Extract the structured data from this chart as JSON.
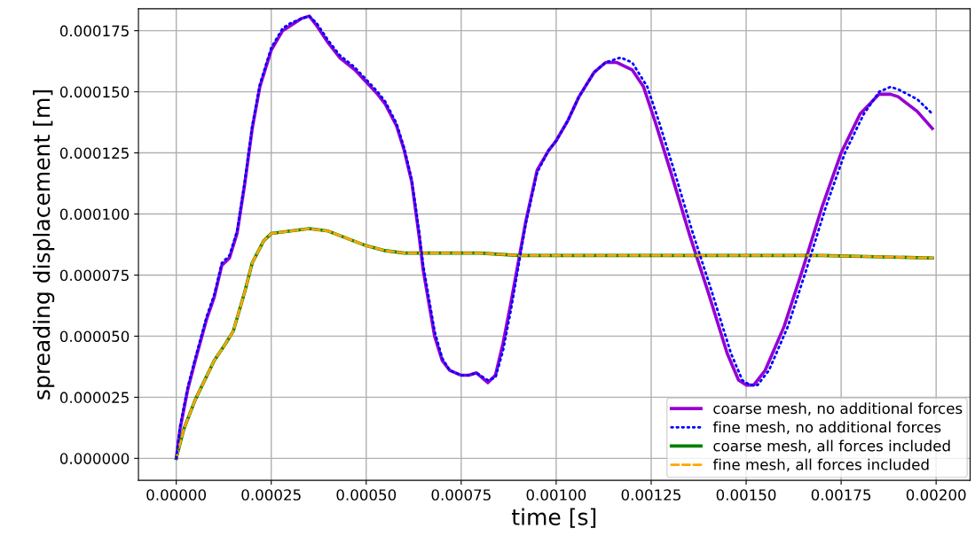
{
  "chart_data": {
    "type": "line",
    "xlabel": "time [s]",
    "ylabel": "spreading displacement [m]",
    "xlim": [
      -9.95e-05,
      0.0020895
    ],
    "ylim": [
      -9e-06,
      0.000184
    ],
    "xticks": [
      {
        "value": 0,
        "label": "0.00000"
      },
      {
        "value": 0.00025,
        "label": "0.00025"
      },
      {
        "value": 0.0005,
        "label": "0.00050"
      },
      {
        "value": 0.00075,
        "label": "0.00075"
      },
      {
        "value": 0.001,
        "label": "0.00100"
      },
      {
        "value": 0.00125,
        "label": "0.00125"
      },
      {
        "value": 0.0015,
        "label": "0.00150"
      },
      {
        "value": 0.00175,
        "label": "0.00175"
      },
      {
        "value": 0.002,
        "label": "0.00200"
      }
    ],
    "yticks": [
      {
        "value": 0,
        "label": "0.000000"
      },
      {
        "value": 2.5e-05,
        "label": "0.000025"
      },
      {
        "value": 5e-05,
        "label": "0.000050"
      },
      {
        "value": 7.5e-05,
        "label": "0.000075"
      },
      {
        "value": 0.0001,
        "label": "0.000100"
      },
      {
        "value": 0.000125,
        "label": "0.000125"
      },
      {
        "value": 0.00015,
        "label": "0.000150"
      },
      {
        "value": 0.000175,
        "label": "0.000175"
      }
    ],
    "grid": true,
    "legend": "bottom right",
    "series": [
      {
        "name": "coarse mesh, no additional forces",
        "color": "#9400d3",
        "line_style": "solid",
        "x": [
          0,
          1e-05,
          3e-05,
          5e-05,
          8e-05,
          0.0001,
          0.00012,
          0.00014,
          0.00016,
          0.00018,
          0.0002,
          0.00022,
          0.00025,
          0.00028,
          0.0003,
          0.00033,
          0.00035,
          0.00037,
          0.0004,
          0.00043,
          0.00047,
          0.0005,
          0.00053,
          0.00055,
          0.00058,
          0.0006,
          0.00062,
          0.00064,
          0.00065,
          0.00066,
          0.00068,
          0.0007,
          0.00072,
          0.00075,
          0.00077,
          0.00079,
          0.00082,
          0.00084,
          0.00086,
          0.00088,
          0.0009,
          0.00092,
          0.00095,
          0.00098,
          0.001,
          0.00103,
          0.00106,
          0.0011,
          0.00113,
          0.00116,
          0.0012,
          0.00123,
          0.00126,
          0.0013,
          0.00135,
          0.0014,
          0.00145,
          0.00148,
          0.0015,
          0.00152,
          0.00155,
          0.0016,
          0.00165,
          0.0017,
          0.00175,
          0.0018,
          0.00185,
          0.00188,
          0.0019,
          0.00195,
          0.00199
        ],
        "values": [
          0,
          1.2e-05,
          2.8e-05,
          4e-05,
          5.7e-05,
          6.6e-05,
          7.9e-05,
          8.2e-05,
          9.2e-05,
          0.000112,
          0.000135,
          0.000152,
          0.000167,
          0.000175,
          0.000177,
          0.00018,
          0.000181,
          0.000177,
          0.00017,
          0.000164,
          0.000159,
          0.000154,
          0.000149,
          0.000145,
          0.000136,
          0.000126,
          0.000113,
          9e-05,
          7.7e-05,
          6.8e-05,
          5e-05,
          4e-05,
          3.6e-05,
          3.4e-05,
          3.4e-05,
          3.5e-05,
          3.1e-05,
          3.4e-05,
          4.7e-05,
          6.3e-05,
          8e-05,
          9.7e-05,
          0.000118,
          0.000126,
          0.00013,
          0.000138,
          0.000148,
          0.000158,
          0.000162,
          0.000162,
          0.000159,
          0.000152,
          0.000138,
          0.000118,
          9.2e-05,
          6.8e-05,
          4.3e-05,
          3.2e-05,
          3e-05,
          3e-05,
          3.6e-05,
          5.4e-05,
          7.8e-05,
          0.000103,
          0.000125,
          0.000141,
          0.000149,
          0.000149,
          0.000148,
          0.000142,
          0.000135
        ]
      },
      {
        "name": "fine mesh, no additional forces",
        "color": "#0000ff",
        "line_style": "dotted",
        "x": [
          0,
          1e-05,
          3e-05,
          5e-05,
          8e-05,
          0.0001,
          0.00012,
          0.00014,
          0.00016,
          0.00018,
          0.0002,
          0.00022,
          0.00025,
          0.00028,
          0.0003,
          0.00033,
          0.00035,
          0.00037,
          0.0004,
          0.00043,
          0.00047,
          0.0005,
          0.00053,
          0.00055,
          0.00058,
          0.0006,
          0.00062,
          0.00064,
          0.00065,
          0.00066,
          0.00068,
          0.0007,
          0.00072,
          0.00075,
          0.00077,
          0.00079,
          0.00082,
          0.00084,
          0.00086,
          0.00088,
          0.0009,
          0.00092,
          0.00095,
          0.00098,
          0.001,
          0.00103,
          0.00106,
          0.0011,
          0.00113,
          0.00117,
          0.0012,
          0.00124,
          0.00127,
          0.00131,
          0.00136,
          0.00141,
          0.00146,
          0.00149,
          0.00151,
          0.00153,
          0.00156,
          0.00161,
          0.00166,
          0.00171,
          0.00176,
          0.00181,
          0.00185,
          0.00188,
          0.0019,
          0.00195,
          0.00199
        ],
        "values": [
          0,
          1.3e-05,
          2.9e-05,
          4.1e-05,
          5.8e-05,
          6.7e-05,
          8e-05,
          8.3e-05,
          9.3e-05,
          0.000113,
          0.000136,
          0.000153,
          0.000168,
          0.000176,
          0.000178,
          0.00018,
          0.000181,
          0.000178,
          0.000171,
          0.000165,
          0.00016,
          0.000155,
          0.00015,
          0.000146,
          0.000137,
          0.000127,
          0.000114,
          9.2e-05,
          7.9e-05,
          7e-05,
          5.2e-05,
          4.1e-05,
          3.6e-05,
          3.4e-05,
          3.4e-05,
          3.5e-05,
          3.2e-05,
          3.3e-05,
          4.4e-05,
          6e-05,
          7.8e-05,
          9.6e-05,
          0.000117,
          0.000126,
          0.00013,
          0.000138,
          0.000148,
          0.000158,
          0.000162,
          0.000164,
          0.000162,
          0.000152,
          0.000138,
          0.000118,
          9.2e-05,
          6.8e-05,
          4.3e-05,
          3.2e-05,
          3e-05,
          3e-05,
          3.6e-05,
          5.4e-05,
          7.8e-05,
          0.000103,
          0.000125,
          0.000141,
          0.00015,
          0.000152,
          0.000151,
          0.000147,
          0.000141
        ]
      },
      {
        "name": "coarse mesh, all forces included",
        "color": "#008000",
        "line_style": "solid",
        "x": [
          0,
          2e-05,
          5e-05,
          0.0001,
          0.00013,
          0.00015,
          0.00018,
          0.0002,
          0.00023,
          0.00025,
          0.0003,
          0.00035,
          0.0004,
          0.00045,
          0.0005,
          0.00055,
          0.0006,
          0.0007,
          0.0008,
          0.0009,
          0.0011,
          0.0014,
          0.0017,
          0.00199
        ],
        "values": [
          0,
          1.2e-05,
          2.4e-05,
          4e-05,
          4.7e-05,
          5.2e-05,
          6.8e-05,
          8e-05,
          8.9e-05,
          9.2e-05,
          9.3e-05,
          9.4e-05,
          9.3e-05,
          9e-05,
          8.7e-05,
          8.5e-05,
          8.4e-05,
          8.4e-05,
          8.4e-05,
          8.3e-05,
          8.3e-05,
          8.3e-05,
          8.3e-05,
          8.2e-05
        ]
      },
      {
        "name": "fine mesh, all forces included",
        "color": "#ffa500",
        "line_style": "dashed",
        "x": [
          0,
          2e-05,
          5e-05,
          0.0001,
          0.00013,
          0.00015,
          0.00018,
          0.0002,
          0.00023,
          0.00025,
          0.0003,
          0.00035,
          0.0004,
          0.00045,
          0.0005,
          0.00055,
          0.0006,
          0.0007,
          0.0008,
          0.0009,
          0.0011,
          0.0014,
          0.0017,
          0.00199
        ],
        "values": [
          0,
          1.2e-05,
          2.4e-05,
          4e-05,
          4.7e-05,
          5.2e-05,
          6.8e-05,
          8e-05,
          8.9e-05,
          9.2e-05,
          9.3e-05,
          9.4e-05,
          9.3e-05,
          9e-05,
          8.7e-05,
          8.5e-05,
          8.4e-05,
          8.4e-05,
          8.4e-05,
          8.3e-05,
          8.3e-05,
          8.3e-05,
          8.3e-05,
          8.2e-05
        ]
      }
    ]
  }
}
